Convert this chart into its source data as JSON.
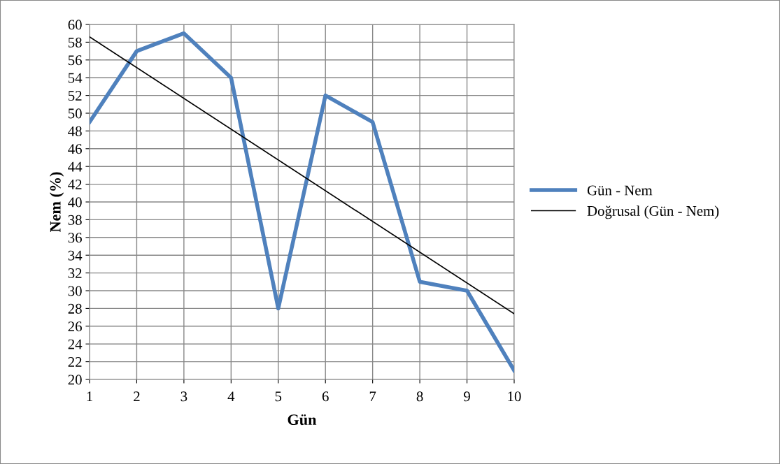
{
  "chart_data": {
    "type": "line",
    "xlabel": "Gün",
    "ylabel": "Nem (%)",
    "x": [
      1,
      2,
      3,
      4,
      5,
      6,
      7,
      8,
      9,
      10
    ],
    "series": [
      {
        "name": "Gün - Nem",
        "color": "#4f81bd",
        "values": [
          49,
          57,
          59,
          54,
          28,
          52,
          49,
          31,
          30,
          21
        ]
      },
      {
        "name": "Doğrusal (Gün - Nem)",
        "color": "#000000",
        "x": [
          1,
          10
        ],
        "values": [
          58.6,
          27.4
        ]
      }
    ],
    "xlim": [
      1,
      10
    ],
    "xticks": [
      1,
      2,
      3,
      4,
      5,
      6,
      7,
      8,
      9,
      10
    ],
    "ylim": [
      20,
      60
    ],
    "yticks": [
      20,
      22,
      24,
      26,
      28,
      30,
      32,
      34,
      36,
      38,
      40,
      42,
      44,
      46,
      48,
      50,
      52,
      54,
      56,
      58,
      60
    ],
    "grid": true,
    "legend": "right",
    "marker": "none",
    "line_style": "solid"
  }
}
